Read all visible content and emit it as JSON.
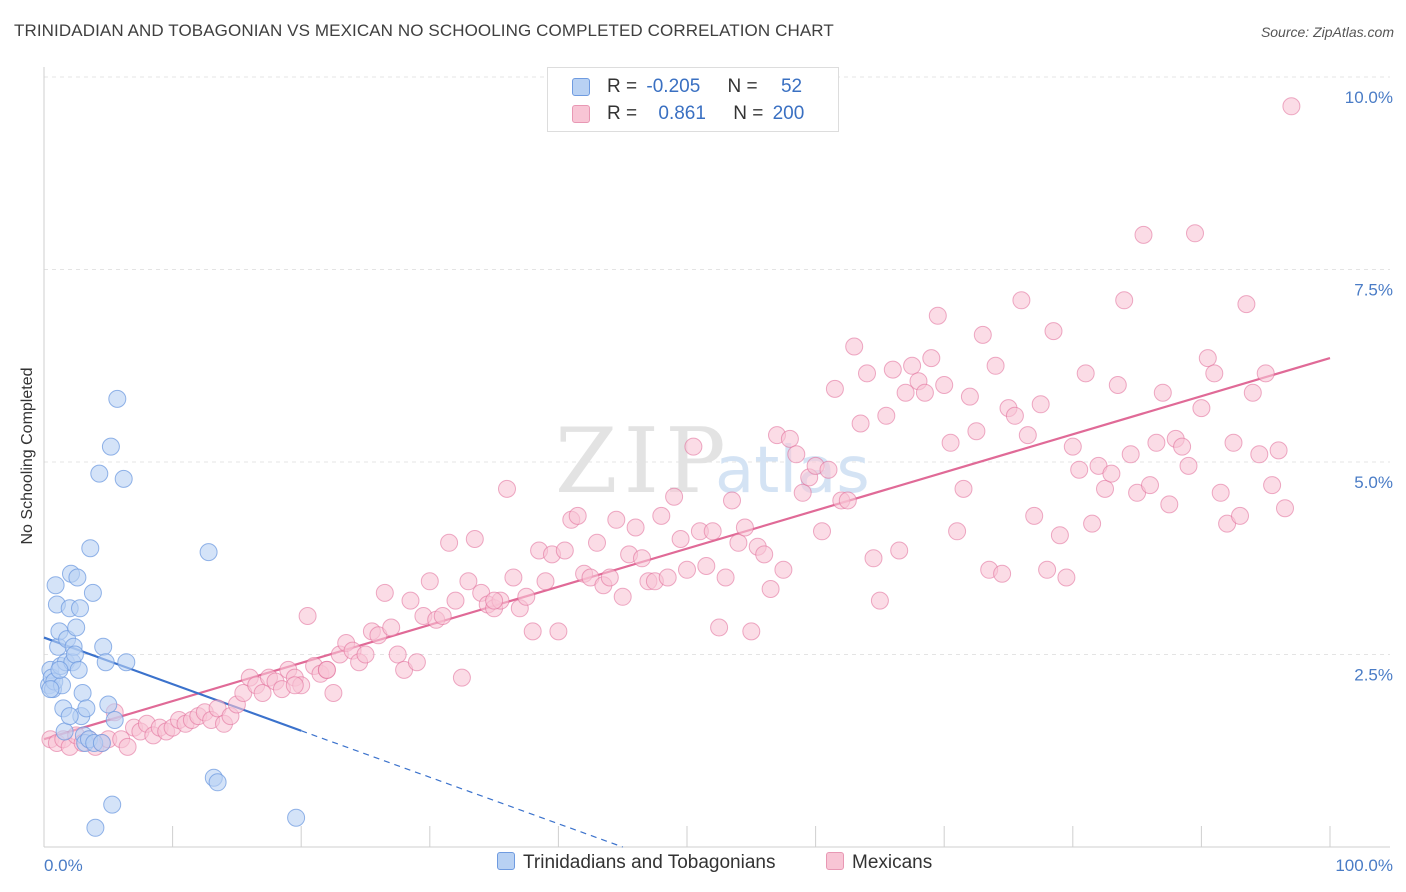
{
  "title": "TRINIDADIAN AND TOBAGONIAN VS MEXICAN NO SCHOOLING COMPLETED CORRELATION CHART",
  "source": "Source: ZipAtlas.com",
  "watermark": {
    "zip": "ZIP",
    "atlas": "atlas"
  },
  "legend": {
    "r_label": "R =",
    "n_label": "N =",
    "rows": [
      {
        "r_value": "-0.205",
        "n_value": "52",
        "color": "#4a7cc6"
      },
      {
        "r_value": "0.861",
        "n_value": "200",
        "color": "#e06a97"
      }
    ]
  },
  "bottom_legend": [
    {
      "label": "Trinidadians and Tobagonians",
      "fill": "#b8d1f3",
      "stroke": "#6f9be0"
    },
    {
      "label": "Mexicans",
      "fill": "#f8c5d5",
      "stroke": "#e898b4"
    }
  ],
  "chart_data": {
    "type": "scatter",
    "title": "TRINIDADIAN AND TOBAGONIAN VS MEXICAN NO SCHOOLING COMPLETED CORRELATION CHART",
    "xlabel": "",
    "ylabel": "No Schooling Completed",
    "xlim": [
      0,
      100
    ],
    "ylim": [
      0,
      10
    ],
    "y_ticks": [
      2.5,
      5.0,
      7.5,
      10.0
    ],
    "y_tick_labels": [
      "2.5%",
      "5.0%",
      "7.5%",
      "10.0%"
    ],
    "x_tick_labels": [
      "0.0%",
      "100.0%"
    ],
    "grid": true,
    "series": [
      {
        "name": "Trinidadians and Tobagonians",
        "color": "#6f9be0",
        "fill": "#b8d1f3",
        "r": -0.205,
        "n": 52,
        "trend": {
          "x0": 0,
          "y0": 2.72,
          "x1": 20,
          "y1": 1.51,
          "dash_x1": 45,
          "dash_y1": 0.0
        },
        "points": [
          [
            0.4,
            2.1
          ],
          [
            0.5,
            2.3
          ],
          [
            0.6,
            2.2
          ],
          [
            0.7,
            2.05
          ],
          [
            0.8,
            2.15
          ],
          [
            0.9,
            3.4
          ],
          [
            1.0,
            3.15
          ],
          [
            1.1,
            2.6
          ],
          [
            1.2,
            2.8
          ],
          [
            1.3,
            2.35
          ],
          [
            1.4,
            2.1
          ],
          [
            1.5,
            1.8
          ],
          [
            1.6,
            1.5
          ],
          [
            1.7,
            2.4
          ],
          [
            1.8,
            2.7
          ],
          [
            2.0,
            3.1
          ],
          [
            2.1,
            3.55
          ],
          [
            2.2,
            2.4
          ],
          [
            2.3,
            2.6
          ],
          [
            2.4,
            2.5
          ],
          [
            2.5,
            2.85
          ],
          [
            2.6,
            3.5
          ],
          [
            2.7,
            2.3
          ],
          [
            2.8,
            3.1
          ],
          [
            2.9,
            1.7
          ],
          [
            3.0,
            2.0
          ],
          [
            3.1,
            1.45
          ],
          [
            3.2,
            1.35
          ],
          [
            3.3,
            1.8
          ],
          [
            3.5,
            1.4
          ],
          [
            3.6,
            3.88
          ],
          [
            3.8,
            3.3
          ],
          [
            3.9,
            1.35
          ],
          [
            4.0,
            0.25
          ],
          [
            4.3,
            4.85
          ],
          [
            4.5,
            1.35
          ],
          [
            4.6,
            2.6
          ],
          [
            4.8,
            2.4
          ],
          [
            5.0,
            1.85
          ],
          [
            5.2,
            5.2
          ],
          [
            5.3,
            0.55
          ],
          [
            5.5,
            1.65
          ],
          [
            5.7,
            5.82
          ],
          [
            6.2,
            4.78
          ],
          [
            6.4,
            2.4
          ],
          [
            12.8,
            3.83
          ],
          [
            13.2,
            0.9
          ],
          [
            13.5,
            0.84
          ],
          [
            19.6,
            0.38
          ],
          [
            0.5,
            2.05
          ],
          [
            1.2,
            2.3
          ],
          [
            2.0,
            1.7
          ]
        ]
      },
      {
        "name": "Mexicans",
        "color": "#e06a97",
        "fill": "#f8c5d5",
        "r": 0.861,
        "n": 200,
        "trend": {
          "x0": 0,
          "y0": 1.4,
          "x1": 100,
          "y1": 6.35
        },
        "points": [
          [
            0.5,
            1.4
          ],
          [
            1.0,
            1.35
          ],
          [
            1.5,
            1.4
          ],
          [
            2.0,
            1.3
          ],
          [
            2.5,
            1.45
          ],
          [
            3.0,
            1.35
          ],
          [
            3.5,
            1.4
          ],
          [
            4.0,
            1.3
          ],
          [
            4.5,
            1.35
          ],
          [
            5.0,
            1.4
          ],
          [
            5.5,
            1.75
          ],
          [
            6.0,
            1.4
          ],
          [
            6.5,
            1.3
          ],
          [
            7.0,
            1.55
          ],
          [
            7.5,
            1.5
          ],
          [
            8.0,
            1.6
          ],
          [
            8.5,
            1.45
          ],
          [
            9.0,
            1.55
          ],
          [
            9.5,
            1.5
          ],
          [
            10.0,
            1.55
          ],
          [
            10.5,
            1.65
          ],
          [
            11.0,
            1.6
          ],
          [
            11.5,
            1.65
          ],
          [
            12.0,
            1.7
          ],
          [
            12.5,
            1.75
          ],
          [
            13.0,
            1.65
          ],
          [
            13.5,
            1.8
          ],
          [
            14.0,
            1.6
          ],
          [
            14.5,
            1.7
          ],
          [
            15.0,
            1.85
          ],
          [
            15.5,
            2.0
          ],
          [
            16.0,
            2.2
          ],
          [
            16.5,
            2.1
          ],
          [
            17.0,
            2.0
          ],
          [
            17.5,
            2.2
          ],
          [
            18.0,
            2.15
          ],
          [
            18.5,
            2.05
          ],
          [
            19.0,
            2.3
          ],
          [
            19.5,
            2.2
          ],
          [
            20.0,
            2.1
          ],
          [
            20.5,
            3.0
          ],
          [
            21.0,
            2.35
          ],
          [
            21.5,
            2.25
          ],
          [
            22.0,
            2.3
          ],
          [
            22.5,
            2.0
          ],
          [
            23.0,
            2.5
          ],
          [
            23.5,
            2.65
          ],
          [
            24.0,
            2.55
          ],
          [
            24.5,
            2.4
          ],
          [
            25.0,
            2.5
          ],
          [
            25.5,
            2.8
          ],
          [
            26.0,
            2.75
          ],
          [
            26.5,
            3.3
          ],
          [
            27.0,
            2.85
          ],
          [
            27.5,
            2.5
          ],
          [
            28.0,
            2.3
          ],
          [
            28.5,
            3.2
          ],
          [
            29.0,
            2.4
          ],
          [
            29.5,
            3.0
          ],
          [
            30.0,
            3.45
          ],
          [
            30.5,
            2.95
          ],
          [
            31.0,
            3.0
          ],
          [
            31.5,
            3.95
          ],
          [
            32.0,
            3.2
          ],
          [
            32.5,
            2.2
          ],
          [
            33.0,
            3.45
          ],
          [
            33.5,
            4.0
          ],
          [
            34.0,
            3.3
          ],
          [
            34.5,
            3.15
          ],
          [
            35.0,
            3.1
          ],
          [
            35.5,
            3.2
          ],
          [
            36.0,
            4.65
          ],
          [
            36.5,
            3.5
          ],
          [
            37.0,
            3.1
          ],
          [
            37.5,
            3.25
          ],
          [
            38.0,
            2.8
          ],
          [
            38.5,
            3.85
          ],
          [
            39.0,
            3.45
          ],
          [
            39.5,
            3.8
          ],
          [
            40.0,
            2.8
          ],
          [
            40.5,
            3.85
          ],
          [
            41.0,
            4.25
          ],
          [
            41.5,
            4.3
          ],
          [
            42.0,
            3.55
          ],
          [
            42.5,
            3.5
          ],
          [
            43.0,
            3.95
          ],
          [
            43.5,
            3.4
          ],
          [
            44.0,
            3.5
          ],
          [
            44.5,
            4.25
          ],
          [
            45.0,
            3.25
          ],
          [
            45.5,
            3.8
          ],
          [
            46.0,
            4.15
          ],
          [
            46.5,
            3.75
          ],
          [
            47.0,
            3.45
          ],
          [
            47.5,
            3.45
          ],
          [
            48.0,
            4.3
          ],
          [
            48.5,
            3.5
          ],
          [
            49.0,
            4.55
          ],
          [
            49.5,
            4.0
          ],
          [
            50.0,
            3.6
          ],
          [
            50.5,
            5.2
          ],
          [
            51.0,
            4.1
          ],
          [
            51.5,
            3.65
          ],
          [
            52.0,
            4.1
          ],
          [
            52.5,
            2.85
          ],
          [
            53.0,
            3.5
          ],
          [
            53.5,
            4.5
          ],
          [
            54.0,
            3.95
          ],
          [
            54.5,
            4.15
          ],
          [
            55.0,
            2.8
          ],
          [
            55.5,
            3.9
          ],
          [
            56.0,
            3.8
          ],
          [
            56.5,
            3.35
          ],
          [
            57.0,
            5.35
          ],
          [
            57.5,
            3.6
          ],
          [
            58.0,
            5.3
          ],
          [
            58.5,
            5.1
          ],
          [
            59.0,
            4.6
          ],
          [
            59.5,
            4.8
          ],
          [
            60.0,
            4.95
          ],
          [
            60.5,
            4.1
          ],
          [
            61.0,
            4.9
          ],
          [
            61.5,
            5.95
          ],
          [
            62.0,
            4.5
          ],
          [
            62.5,
            4.5
          ],
          [
            63.0,
            6.5
          ],
          [
            63.5,
            5.5
          ],
          [
            64.0,
            6.15
          ],
          [
            64.5,
            3.75
          ],
          [
            65.0,
            3.2
          ],
          [
            65.5,
            5.6
          ],
          [
            66.0,
            6.2
          ],
          [
            66.5,
            3.85
          ],
          [
            67.0,
            5.9
          ],
          [
            67.5,
            6.25
          ],
          [
            68.0,
            6.05
          ],
          [
            68.5,
            5.9
          ],
          [
            69.0,
            6.35
          ],
          [
            69.5,
            6.9
          ],
          [
            70.0,
            6.0
          ],
          [
            70.5,
            5.25
          ],
          [
            71.0,
            4.1
          ],
          [
            71.5,
            4.65
          ],
          [
            72.0,
            5.85
          ],
          [
            72.5,
            5.4
          ],
          [
            73.0,
            6.65
          ],
          [
            73.5,
            3.6
          ],
          [
            74.0,
            6.25
          ],
          [
            74.5,
            3.55
          ],
          [
            75.0,
            5.7
          ],
          [
            75.5,
            5.6
          ],
          [
            76.0,
            7.1
          ],
          [
            76.5,
            5.35
          ],
          [
            77.0,
            4.3
          ],
          [
            77.5,
            5.75
          ],
          [
            78.0,
            3.6
          ],
          [
            78.5,
            6.7
          ],
          [
            79.0,
            4.05
          ],
          [
            79.5,
            3.5
          ],
          [
            80.0,
            5.2
          ],
          [
            80.5,
            4.9
          ],
          [
            81.0,
            6.15
          ],
          [
            81.5,
            4.2
          ],
          [
            82.0,
            4.95
          ],
          [
            82.5,
            4.65
          ],
          [
            83.0,
            4.85
          ],
          [
            83.5,
            6.0
          ],
          [
            84.0,
            7.1
          ],
          [
            84.5,
            5.1
          ],
          [
            85.0,
            4.6
          ],
          [
            85.5,
            7.95
          ],
          [
            86.0,
            4.7
          ],
          [
            86.5,
            5.25
          ],
          [
            87.0,
            5.9
          ],
          [
            87.5,
            4.45
          ],
          [
            88.0,
            5.3
          ],
          [
            88.5,
            5.2
          ],
          [
            89.0,
            4.95
          ],
          [
            89.5,
            7.97
          ],
          [
            90.0,
            5.7
          ],
          [
            90.5,
            6.35
          ],
          [
            91.0,
            6.15
          ],
          [
            91.5,
            4.6
          ],
          [
            92.0,
            4.2
          ],
          [
            92.5,
            5.25
          ],
          [
            93.0,
            4.3
          ],
          [
            93.5,
            7.05
          ],
          [
            94.0,
            5.9
          ],
          [
            94.5,
            5.1
          ],
          [
            95.0,
            6.15
          ],
          [
            95.5,
            4.7
          ],
          [
            96.0,
            5.15
          ],
          [
            96.5,
            4.4
          ],
          [
            97.0,
            9.62
          ],
          [
            19.5,
            2.1
          ],
          [
            35.0,
            3.2
          ],
          [
            22.0,
            2.3
          ]
        ]
      }
    ]
  }
}
